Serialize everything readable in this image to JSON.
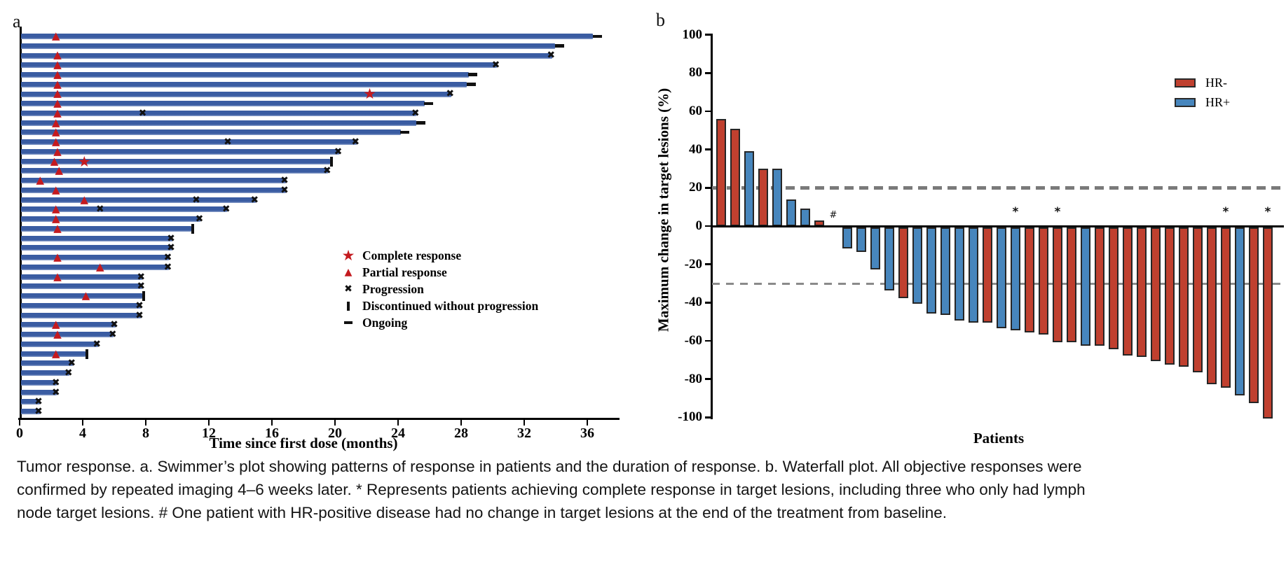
{
  "caption": {
    "lines": [
      "Tumor response. a. Swimmer’s plot showing patterns of response in patients and the duration of response. b. Waterfall plot. All objective responses were",
      "confirmed by repeated imaging 4–6 weeks later. * Represents patients achieving complete response in target lesions, including three who only had lymph",
      "node target lesions. # One patient with HR-positive disease had no change in target lesions at the end of the treatment from baseline."
    ]
  },
  "colors": {
    "swimmer_bar": "#3a5ca2",
    "swimmer_bar_edge": "#8fa3cd",
    "response_red": "#c41a1f",
    "marker_black": "#111111",
    "hr_negative": "#c0402f",
    "hr_positive": "#4786bd",
    "bar_outline": "#262626",
    "reference_gray": "#7f7f7f"
  },
  "chart_data": [
    {
      "type": "bar",
      "variant": "swimmer",
      "panel_label": "a",
      "xlabel": "Time since first dose (months)",
      "xlim": [
        0,
        38
      ],
      "xticks": [
        0,
        4,
        8,
        12,
        16,
        20,
        24,
        28,
        32,
        36
      ],
      "grid": false,
      "legend_position": "inside-right",
      "legend": [
        {
          "glyph": "star",
          "label": "Complete response"
        },
        {
          "glyph": "triangle",
          "label": "Partial response"
        },
        {
          "glyph": "x",
          "label": "Progression"
        },
        {
          "glyph": "bar",
          "label": "Discontinued without progression"
        },
        {
          "glyph": "dash",
          "label": "Ongoing"
        }
      ],
      "patients": [
        {
          "months": 36.3,
          "end": "ongoing",
          "marks": [
            {
              "type": "partial",
              "month": 2.3
            }
          ]
        },
        {
          "months": 33.9,
          "end": "ongoing",
          "marks": []
        },
        {
          "months": 33.7,
          "end": "progression",
          "marks": [
            {
              "type": "partial",
              "month": 2.4
            }
          ]
        },
        {
          "months": 30.2,
          "end": "progression",
          "marks": [
            {
              "type": "partial",
              "month": 2.4
            }
          ]
        },
        {
          "months": 28.4,
          "end": "ongoing",
          "marks": [
            {
              "type": "partial",
              "month": 2.4
            }
          ]
        },
        {
          "months": 28.3,
          "end": "ongoing",
          "marks": [
            {
              "type": "partial",
              "month": 2.4
            }
          ]
        },
        {
          "months": 27.3,
          "end": "progression",
          "marks": [
            {
              "type": "partial",
              "month": 2.4
            },
            {
              "type": "complete",
              "month": 22.2
            }
          ]
        },
        {
          "months": 25.6,
          "end": "ongoing",
          "marks": [
            {
              "type": "partial",
              "month": 2.4
            }
          ]
        },
        {
          "months": 25.1,
          "end": "progression",
          "marks": [
            {
              "type": "partial",
              "month": 2.4
            },
            {
              "type": "progression",
              "month": 7.8
            }
          ]
        },
        {
          "months": 25.1,
          "end": "ongoing",
          "marks": [
            {
              "type": "partial",
              "month": 2.3
            }
          ]
        },
        {
          "months": 24.1,
          "end": "ongoing",
          "marks": [
            {
              "type": "partial",
              "month": 2.3
            }
          ]
        },
        {
          "months": 21.3,
          "end": "progression",
          "marks": [
            {
              "type": "partial",
              "month": 2.3
            },
            {
              "type": "progression",
              "month": 13.2
            }
          ]
        },
        {
          "months": 20.2,
          "end": "progression",
          "marks": [
            {
              "type": "partial",
              "month": 2.4
            }
          ]
        },
        {
          "months": 19.6,
          "end": "discontinued",
          "marks": [
            {
              "type": "partial",
              "month": 2.2
            },
            {
              "type": "complete",
              "month": 4.1
            }
          ]
        },
        {
          "months": 19.5,
          "end": "progression",
          "marks": [
            {
              "type": "partial",
              "month": 2.5
            }
          ]
        },
        {
          "months": 16.8,
          "end": "progression",
          "marks": [
            {
              "type": "partial",
              "month": 1.3
            }
          ]
        },
        {
          "months": 16.8,
          "end": "progression",
          "marks": [
            {
              "type": "partial",
              "month": 2.3
            }
          ]
        },
        {
          "months": 14.9,
          "end": "progression",
          "marks": [
            {
              "type": "partial",
              "month": 4.1
            },
            {
              "type": "progression",
              "month": 11.2
            }
          ]
        },
        {
          "months": 13.1,
          "end": "progression",
          "marks": [
            {
              "type": "partial",
              "month": 2.3
            },
            {
              "type": "progression",
              "month": 5.1
            }
          ]
        },
        {
          "months": 11.4,
          "end": "progression",
          "marks": [
            {
              "type": "partial",
              "month": 2.3
            }
          ]
        },
        {
          "months": 10.8,
          "end": "discontinued",
          "marks": [
            {
              "type": "partial",
              "month": 2.4
            }
          ]
        },
        {
          "months": 9.6,
          "end": "progression",
          "marks": []
        },
        {
          "months": 9.6,
          "end": "progression",
          "marks": []
        },
        {
          "months": 9.4,
          "end": "progression",
          "marks": [
            {
              "type": "partial",
              "month": 2.4
            }
          ]
        },
        {
          "months": 9.4,
          "end": "progression",
          "marks": [
            {
              "type": "partial",
              "month": 5.1
            }
          ]
        },
        {
          "months": 7.7,
          "end": "progression",
          "marks": [
            {
              "type": "partial",
              "month": 2.4
            }
          ]
        },
        {
          "months": 7.7,
          "end": "progression",
          "marks": []
        },
        {
          "months": 7.7,
          "end": "discontinued",
          "marks": [
            {
              "type": "partial",
              "month": 4.2
            }
          ]
        },
        {
          "months": 7.6,
          "end": "progression",
          "marks": []
        },
        {
          "months": 7.6,
          "end": "progression",
          "marks": []
        },
        {
          "months": 6.0,
          "end": "progression",
          "marks": [
            {
              "type": "partial",
              "month": 2.3
            }
          ]
        },
        {
          "months": 5.9,
          "end": "progression",
          "marks": [
            {
              "type": "partial",
              "month": 2.4
            }
          ]
        },
        {
          "months": 4.9,
          "end": "progression",
          "marks": []
        },
        {
          "months": 4.1,
          "end": "discontinued",
          "marks": [
            {
              "type": "partial",
              "month": 2.3
            }
          ]
        },
        {
          "months": 3.3,
          "end": "progression",
          "marks": []
        },
        {
          "months": 3.1,
          "end": "progression",
          "marks": []
        },
        {
          "months": 2.3,
          "end": "progression",
          "marks": []
        },
        {
          "months": 2.3,
          "end": "progression",
          "marks": []
        },
        {
          "months": 1.2,
          "end": "progression",
          "marks": []
        },
        {
          "months": 1.2,
          "end": "progression",
          "marks": []
        }
      ]
    },
    {
      "type": "bar",
      "variant": "waterfall",
      "panel_label": "b",
      "ylabel": "Maximum change in target lesions (%)",
      "xlabel": "Patients",
      "ylim": [
        -100,
        100
      ],
      "yticks": [
        100,
        80,
        60,
        40,
        20,
        0,
        -20,
        -40,
        -60,
        -80,
        -100
      ],
      "reference_lines": [
        20,
        -30
      ],
      "grid": false,
      "legend_position": "upper-right",
      "legend": [
        {
          "name": "HR-",
          "color": "#c0402f"
        },
        {
          "name": "HR+",
          "color": "#4786bd"
        }
      ],
      "bars": [
        {
          "value": 56,
          "group": "HR-"
        },
        {
          "value": 51,
          "group": "HR-"
        },
        {
          "value": 39,
          "group": "HR+"
        },
        {
          "value": 30,
          "group": "HR-"
        },
        {
          "value": 30,
          "group": "HR+"
        },
        {
          "value": 14,
          "group": "HR+"
        },
        {
          "value": 9,
          "group": "HR+"
        },
        {
          "value": 3,
          "group": "HR-"
        },
        {
          "value": 0,
          "group": "HR+",
          "mark": "#"
        },
        {
          "value": -11,
          "group": "HR+"
        },
        {
          "value": -13,
          "group": "HR+"
        },
        {
          "value": -22,
          "group": "HR+"
        },
        {
          "value": -33,
          "group": "HR+"
        },
        {
          "value": -37,
          "group": "HR-"
        },
        {
          "value": -40,
          "group": "HR+"
        },
        {
          "value": -45,
          "group": "HR+"
        },
        {
          "value": -46,
          "group": "HR+"
        },
        {
          "value": -49,
          "group": "HR+"
        },
        {
          "value": -50,
          "group": "HR+"
        },
        {
          "value": -50,
          "group": "HR-"
        },
        {
          "value": -53,
          "group": "HR+"
        },
        {
          "value": -54,
          "group": "HR+",
          "mark": "*"
        },
        {
          "value": -55,
          "group": "HR-"
        },
        {
          "value": -56,
          "group": "HR-"
        },
        {
          "value": -60,
          "group": "HR-",
          "mark": "*"
        },
        {
          "value": -60,
          "group": "HR-"
        },
        {
          "value": -62,
          "group": "HR+"
        },
        {
          "value": -62,
          "group": "HR-"
        },
        {
          "value": -64,
          "group": "HR-"
        },
        {
          "value": -67,
          "group": "HR-"
        },
        {
          "value": -68,
          "group": "HR-"
        },
        {
          "value": -70,
          "group": "HR-"
        },
        {
          "value": -72,
          "group": "HR-"
        },
        {
          "value": -73,
          "group": "HR-"
        },
        {
          "value": -76,
          "group": "HR-"
        },
        {
          "value": -82,
          "group": "HR-"
        },
        {
          "value": -84,
          "group": "HR-",
          "mark": "*"
        },
        {
          "value": -88,
          "group": "HR+"
        },
        {
          "value": -92,
          "group": "HR-"
        },
        {
          "value": -100,
          "group": "HR-",
          "mark": "*"
        }
      ]
    }
  ]
}
